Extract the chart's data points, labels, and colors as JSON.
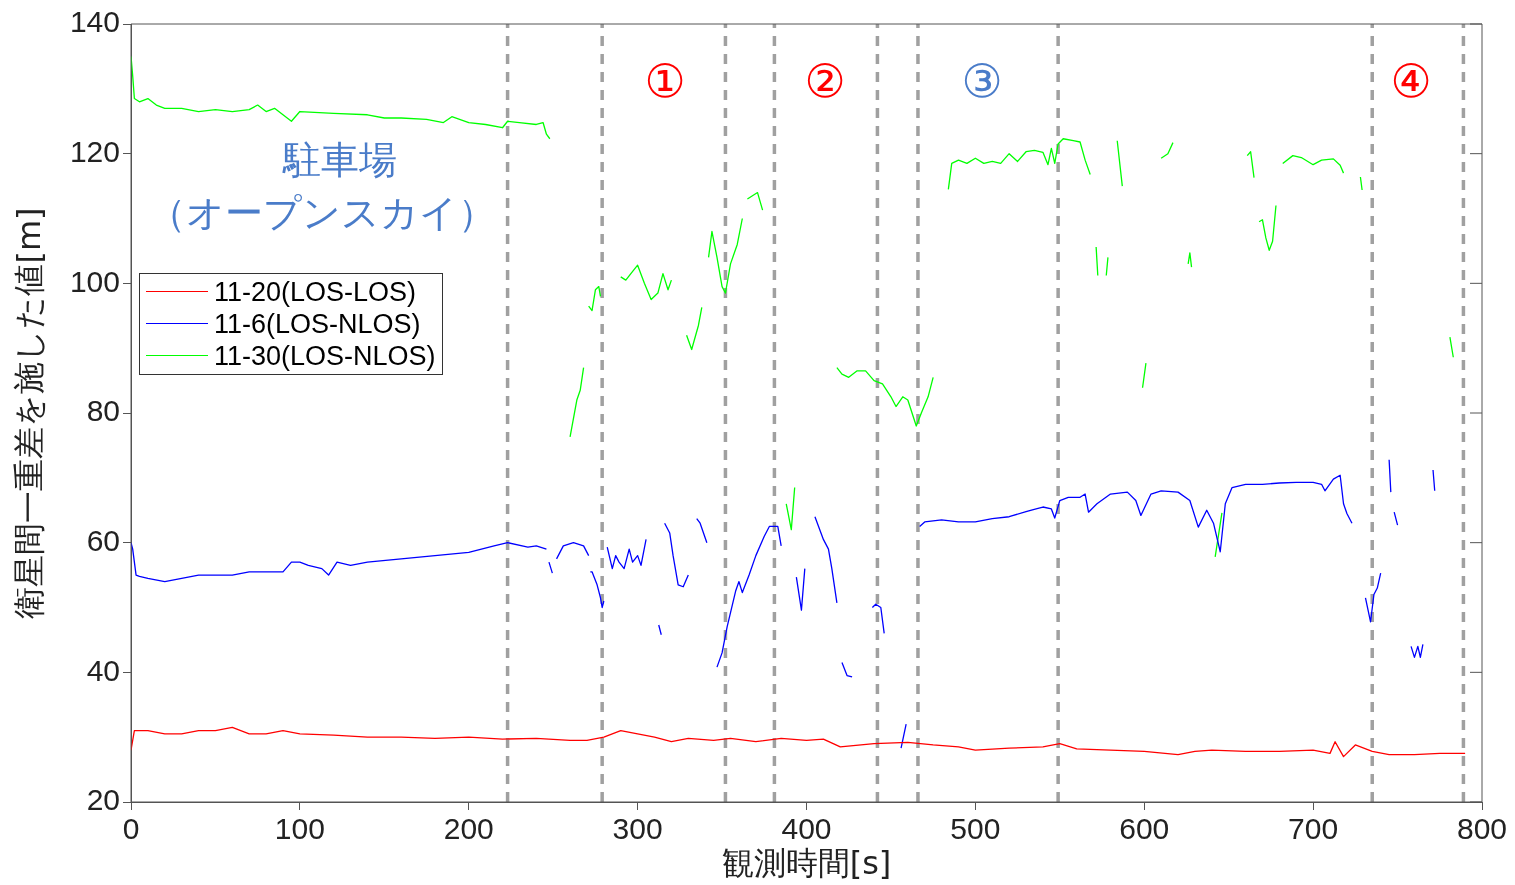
{
  "chart_data": {
    "type": "line",
    "xlabel": "観測時間[s]",
    "ylabel": "衛星間一重差を施した値[m]",
    "xlim": [
      0,
      800
    ],
    "ylim": [
      20,
      140
    ],
    "xticks": [
      0,
      100,
      200,
      300,
      400,
      500,
      600,
      700,
      800
    ],
    "yticks": [
      20,
      40,
      60,
      80,
      100,
      120,
      140
    ],
    "grid": false,
    "legend": "left",
    "series": [
      {
        "name": "11-20(LOS-LOS)",
        "color": "#ff0000",
        "x": [
          0,
          2,
          10,
          20,
          30,
          40,
          50,
          60,
          70,
          80,
          90,
          100,
          120,
          140,
          160,
          180,
          200,
          220,
          240,
          260,
          270,
          280,
          290,
          300,
          310,
          320,
          330,
          345,
          355,
          370,
          385,
          400,
          410,
          420,
          440,
          460,
          475,
          490,
          500,
          520,
          540,
          550,
          560,
          580,
          600,
          620,
          630,
          640,
          660,
          680,
          700,
          710,
          713,
          718,
          725,
          735,
          745,
          760,
          775,
          790
        ],
        "values": [
          28,
          31,
          31,
          30.5,
          30.5,
          31,
          31,
          31.5,
          30.5,
          30.5,
          31,
          30.5,
          30.3,
          30,
          30,
          29.8,
          30,
          29.7,
          29.8,
          29.5,
          29.5,
          30,
          31,
          30.5,
          30,
          29.3,
          29.8,
          29.5,
          29.8,
          29.3,
          29.8,
          29.5,
          29.7,
          28.5,
          29,
          29.2,
          28.8,
          28.5,
          28,
          28.3,
          28.5,
          29,
          28.2,
          28,
          27.8,
          27.3,
          27.8,
          28,
          27.8,
          27.8,
          28,
          27.5,
          29.3,
          27,
          28.8,
          27.8,
          27.3,
          27.3,
          27.5,
          27.5
        ]
      },
      {
        "name": "11-6(LOS-NLOS)",
        "color": "#0000ff",
        "x": [
          0,
          1,
          3,
          5,
          10,
          20,
          30,
          40,
          50,
          60,
          70,
          80,
          90,
          95,
          100,
          105,
          113,
          117,
          122,
          130,
          140,
          160,
          180,
          200,
          215,
          223,
          235,
          240,
          246,
          247,
          247.5,
          249.5,
          250,
          252,
          256,
          262,
          268,
          271,
          271.5,
          272,
          273,
          276,
          278,
          279,
          280,
          281,
          282,
          285,
          287,
          289,
          292,
          295,
          297,
          300,
          302,
          305,
          309,
          312.5,
          314,
          315,
          316,
          319,
          321,
          324,
          327,
          330,
          332,
          335,
          337,
          341,
          344,
          347,
          350,
          353,
          358,
          360,
          362,
          366,
          370,
          375,
          378,
          383,
          385,
          390,
          394,
          397,
          399,
          402,
          405,
          410,
          413,
          415,
          418,
          419,
          421,
          424,
          427,
          433,
          439,
          441,
          444,
          446,
          451,
          456,
          459,
          463,
          467,
          470,
          480,
          490,
          500,
          510,
          520,
          530,
          540,
          545,
          547,
          550,
          555,
          562,
          565,
          567,
          572,
          580,
          590,
          595,
          598,
          604,
          610,
          620,
          627,
          632,
          637,
          641,
          645,
          648,
          652,
          660,
          670,
          680,
          690,
          700,
          705,
          707,
          712,
          716,
          718,
          720,
          723,
          727,
          731,
          734,
          736,
          738,
          740,
          742,
          745,
          746,
          747,
          748,
          750,
          754,
          758,
          760,
          762,
          763.5,
          765,
          768,
          771,
          772
        ],
        "values": [
          60,
          59,
          55,
          54.8,
          54.5,
          54,
          54.5,
          55,
          55,
          55,
          55.5,
          55.5,
          55.5,
          57,
          57,
          56.5,
          56,
          55,
          57,
          56.5,
          57,
          57.5,
          58,
          58.5,
          59.5,
          60,
          59.3,
          59.5,
          59,
          null,
          57,
          55.3,
          null,
          57.5,
          59.5,
          60,
          59.5,
          58,
          null,
          55.5,
          55.5,
          53.5,
          51.5,
          50,
          51,
          null,
          59.3,
          56,
          58,
          57,
          56,
          59,
          57,
          58,
          56.5,
          60.5,
          null,
          47.3,
          45.8,
          null,
          63,
          61.5,
          58,
          53.5,
          53.2,
          55,
          null,
          63.7,
          63,
          60,
          null,
          40.8,
          43,
          47,
          52.5,
          54,
          52.3,
          55,
          58,
          61,
          62.5,
          62.5,
          59.5,
          null,
          54.7,
          49.6,
          56,
          null,
          64,
          60.5,
          59,
          56,
          50.7,
          null,
          41.5,
          39.5,
          39.3,
          null,
          50,
          50.5,
          50,
          46,
          null,
          28.3,
          32,
          null,
          62.5,
          63.2,
          63.5,
          63.2,
          63.2,
          63.7,
          64,
          64.8,
          65.5,
          65.2,
          63.8,
          66.5,
          67,
          67,
          67.5,
          64.7,
          66,
          67.5,
          67.8,
          66.5,
          64.2,
          67.5,
          68,
          67.8,
          66.5,
          62.4,
          65,
          63,
          58.6,
          66,
          68.5,
          69,
          69,
          69.2,
          69.3,
          69.3,
          69,
          68,
          69.8,
          70.4,
          66,
          64.5,
          63,
          null,
          51.5,
          47.8,
          52,
          53,
          55.3,
          null,
          72.8,
          67.8,
          null,
          64.7,
          62.7,
          null,
          44,
          42.3,
          44,
          42.3,
          44.3,
          null,
          71.2,
          68
        ]
      },
      {
        "name": "11-30(LOS-NLOS)",
        "color": "#00ff00",
        "x": [
          0,
          1,
          2,
          5,
          10,
          15,
          20,
          30,
          40,
          50,
          60,
          70,
          75,
          80,
          85,
          95,
          100,
          120,
          140,
          150,
          160,
          175,
          185,
          190,
          200,
          210,
          220,
          223,
          230,
          240,
          244,
          246,
          248,
          254,
          260,
          264,
          266,
          268,
          269,
          271,
          273,
          275,
          277,
          278,
          283,
          290,
          293,
          296,
          300,
          304,
          308,
          312,
          315,
          318,
          320,
          325,
          329,
          332,
          336,
          338,
          340,
          342,
          344,
          347,
          350,
          352,
          355,
          359,
          362,
          363,
          365,
          368,
          371,
          374,
          380,
          388,
          391,
          393,
          405,
          418,
          421,
          425,
          430,
          435,
          440,
          445,
          450,
          453,
          457,
          460,
          465,
          468,
          472,
          475,
          480,
          484,
          486,
          490,
          495,
          500,
          505,
          510,
          515,
          520,
          525,
          530,
          535,
          540,
          543,
          545,
          547,
          549,
          552,
          558,
          562,
          565,
          568,
          570,
          571.5,
          572.5,
          575,
          577.5,
          578.5,
          580,
          584,
          587,
          593,
          599,
          601,
          605,
          610,
          614,
          617,
          620,
          626,
          627,
          628,
          635,
          642,
          646,
          655,
          661,
          663,
          665,
          666,
          668,
          670,
          672,
          674,
          676,
          678,
          680,
          682,
          688,
          693,
          700,
          705,
          712,
          716,
          718,
          722,
          728,
          729,
          750,
          781,
          783
        ],
        "values": [
          135,
          132,
          128.5,
          128,
          128.5,
          127.5,
          127,
          127,
          126.5,
          126.8,
          126.5,
          126.8,
          127.5,
          126.5,
          127,
          125,
          126.5,
          126.2,
          126,
          125.5,
          125.5,
          125.3,
          124.8,
          125.7,
          124.8,
          124.5,
          124,
          125,
          124.8,
          124.5,
          124.8,
          123,
          122.3,
          null,
          76.3,
          82,
          83.5,
          87,
          null,
          96.5,
          95.8,
          99,
          99.5,
          98,
          null,
          101,
          100.5,
          101.5,
          102.8,
          100,
          97.5,
          98.5,
          101.5,
          99,
          100.5,
          null,
          92,
          89.8,
          93.5,
          96.3,
          null,
          104,
          108,
          104,
          99.5,
          98.5,
          103,
          106,
          110,
          null,
          113,
          113.5,
          114,
          111.3,
          null,
          66,
          62,
          68.5,
          null,
          87,
          86,
          85.5,
          86.5,
          86.5,
          85,
          84.5,
          82.5,
          81,
          82.5,
          82,
          78,
          80,
          82.5,
          85.5,
          null,
          114.5,
          118.5,
          119,
          118.5,
          119.3,
          118.5,
          118.8,
          118.5,
          120,
          118.8,
          120.3,
          120.5,
          120.2,
          118.3,
          120.8,
          118.5,
          121.5,
          122.3,
          122,
          121.8,
          119,
          116.8,
          null,
          105.6,
          101.2,
          null,
          101.2,
          104,
          null,
          122,
          115,
          null,
          83.9,
          87.7,
          null,
          119.3,
          120,
          121.7,
          null,
          103,
          104.7,
          102.5,
          null,
          57.8,
          64.6,
          null,
          119.7,
          120.3,
          116.3,
          null,
          109.5,
          109.8,
          107,
          105.1,
          106.5,
          112,
          null,
          118.5,
          119.7,
          119.4,
          118.3,
          119,
          119.2,
          118.2,
          117,
          null,
          116.4,
          114.4,
          null,
          91.7,
          88.6
        ]
      }
    ],
    "ref_lines": [
      {
        "axis": "x",
        "value": 223,
        "color": "#a0a0a0",
        "line_style": "dashed"
      },
      {
        "axis": "x",
        "value": 279,
        "color": "#a0a0a0",
        "line_style": "dashed"
      },
      {
        "axis": "x",
        "value": 352,
        "color": "#a0a0a0",
        "line_style": "dashed"
      },
      {
        "axis": "x",
        "value": 381,
        "color": "#a0a0a0",
        "line_style": "dashed"
      },
      {
        "axis": "x",
        "value": 442,
        "color": "#a0a0a0",
        "line_style": "dashed"
      },
      {
        "axis": "x",
        "value": 466,
        "color": "#a0a0a0",
        "line_style": "dashed"
      },
      {
        "axis": "x",
        "value": 549,
        "color": "#a0a0a0",
        "line_style": "dashed"
      },
      {
        "axis": "x",
        "value": 735,
        "color": "#a0a0a0",
        "line_style": "dashed"
      },
      {
        "axis": "x",
        "value": 789,
        "color": "#a0a0a0",
        "line_style": "dashed"
      }
    ],
    "annotations": [
      "駐車場",
      "（オープンスカイ）",
      "①",
      "②",
      "③",
      "④"
    ]
  }
}
